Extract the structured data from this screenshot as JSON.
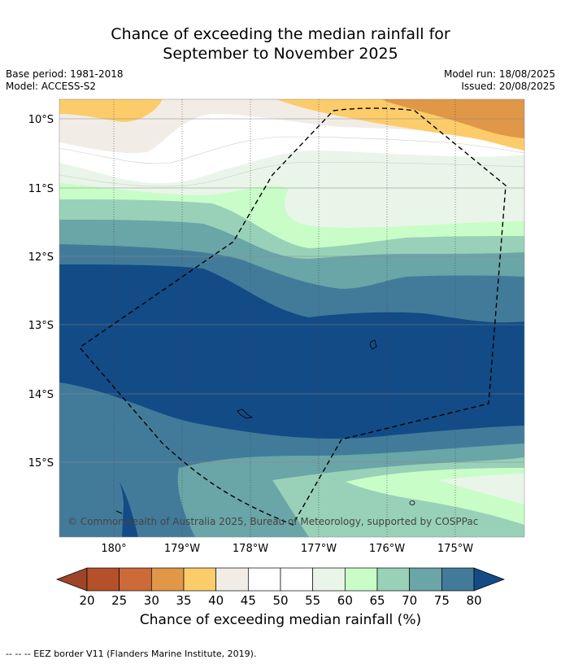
{
  "title_line1": "Chance of exceeding the median rainfall for",
  "title_line2": "September to November 2025",
  "base_period": "Base period: 1981-2018",
  "model": "Model: ACCESS-S2",
  "model_run": "Model run: 18/08/2025",
  "issued": "Issued: 20/08/2025",
  "copyright": "© Commonwealth of Australia 2025, Bureau of Meteorology, supported by COSPPac",
  "lat_labels": [
    "10°S",
    "11°S",
    "12°S",
    "13°S",
    "14°S",
    "15°S"
  ],
  "lon_labels": [
    "180°",
    "179°W",
    "178°W",
    "177°W",
    "176°W",
    "175°W"
  ],
  "colorbar": {
    "ticks": [
      "20",
      "25",
      "30",
      "35",
      "40",
      "45",
      "50",
      "55",
      "60",
      "65",
      "70",
      "75",
      "80"
    ],
    "colors": [
      "#b5502a",
      "#cc6a3a",
      "#e09748",
      "#fdcc6a",
      "#f1ede6",
      "#ffffff",
      "#ffffff",
      "#e9f5e9",
      "#c8fdc8",
      "#98d1b8",
      "#6aa5a7",
      "#427b9a"
    ],
    "under_color": "#9e4528",
    "over_color": "#134b86",
    "label": "Chance of exceeding median rainfall (%)"
  },
  "footer": "-- -- -- EEZ border V11 (Flanders Marine Institute, 2019)."
}
